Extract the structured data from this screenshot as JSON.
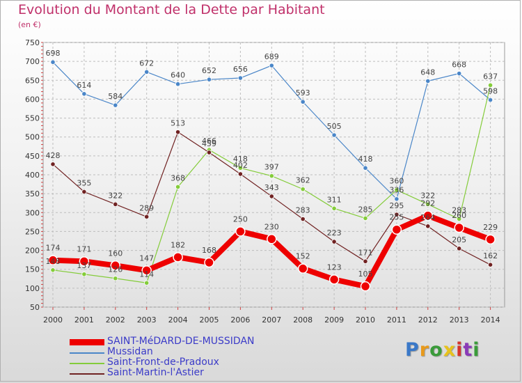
{
  "title": "Evolution du Montant de la Dette par Habitant",
  "subtitle": "(en €)",
  "logo": {
    "text": "Proxiti",
    "colors": [
      "#3a78c8",
      "#e89a1c",
      "#3a9b3a",
      "#e8c21c",
      "#d6342b",
      "#8a3ab8",
      "#3a9b3a"
    ]
  },
  "chart_data": {
    "type": "line",
    "x": [
      "2000",
      "2001",
      "2002",
      "2003",
      "2004",
      "2005",
      "2006",
      "2007",
      "2008",
      "2009",
      "2010",
      "2011",
      "2012",
      "2013",
      "2014"
    ],
    "yticks": [
      50,
      100,
      150,
      200,
      250,
      300,
      350,
      400,
      450,
      500,
      550,
      600,
      650,
      700,
      750
    ],
    "ylim": [
      50,
      750
    ],
    "grid": true,
    "legend": "bottom-left",
    "series": [
      {
        "name": "Mussidan",
        "color": "#4a86c8",
        "width": 1.2,
        "marker": 3.2,
        "values": [
          698,
          614,
          584,
          672,
          640,
          652,
          656,
          689,
          593,
          505,
          418,
          336,
          648,
          668,
          598
        ],
        "labels": [
          "698",
          "614",
          "584",
          "672",
          "640",
          "652",
          "656",
          "689",
          "593",
          "505",
          "418",
          "336",
          "648",
          "668",
          "598"
        ]
      },
      {
        "name": "Saint-Front-de-Pradoux",
        "color": "#84cc3a",
        "width": 1.2,
        "marker": 3.2,
        "values": [
          148,
          137,
          126,
          114,
          368,
          466,
          418,
          397,
          362,
          311,
          285,
          360,
          322,
          283,
          637
        ],
        "labels": [
          "148",
          "137",
          "126",
          "114",
          "368",
          "466",
          "418",
          "397",
          "362",
          "311",
          "285",
          "360",
          "322",
          "283",
          "637"
        ]
      },
      {
        "name": "Saint-Martin-l'Astier",
        "color": "#702222",
        "width": 1.2,
        "marker": 3.2,
        "values": [
          428,
          355,
          322,
          289,
          513,
          459,
          402,
          343,
          283,
          223,
          171,
          295,
          264,
          205,
          162
        ],
        "labels": [
          "428",
          "355",
          "322",
          "289",
          "513",
          "459",
          "402",
          "343",
          "283",
          "223",
          "171",
          "295",
          "264",
          "205",
          "162"
        ]
      },
      {
        "name": "SAINT-MéDARD-DE-MUSSIDAN",
        "color": "#ee0000",
        "width": 8,
        "marker": 6.5,
        "values": [
          174,
          171,
          160,
          147,
          182,
          168,
          250,
          230,
          152,
          123,
          105,
          255,
          292,
          260,
          229
        ],
        "labels": [
          "174",
          "171",
          "160",
          "147",
          "182",
          "168",
          "250",
          "230",
          "152",
          "123",
          "105",
          "255",
          "292",
          "260",
          "229"
        ]
      }
    ]
  },
  "legend_order": [
    3,
    0,
    1,
    2
  ]
}
